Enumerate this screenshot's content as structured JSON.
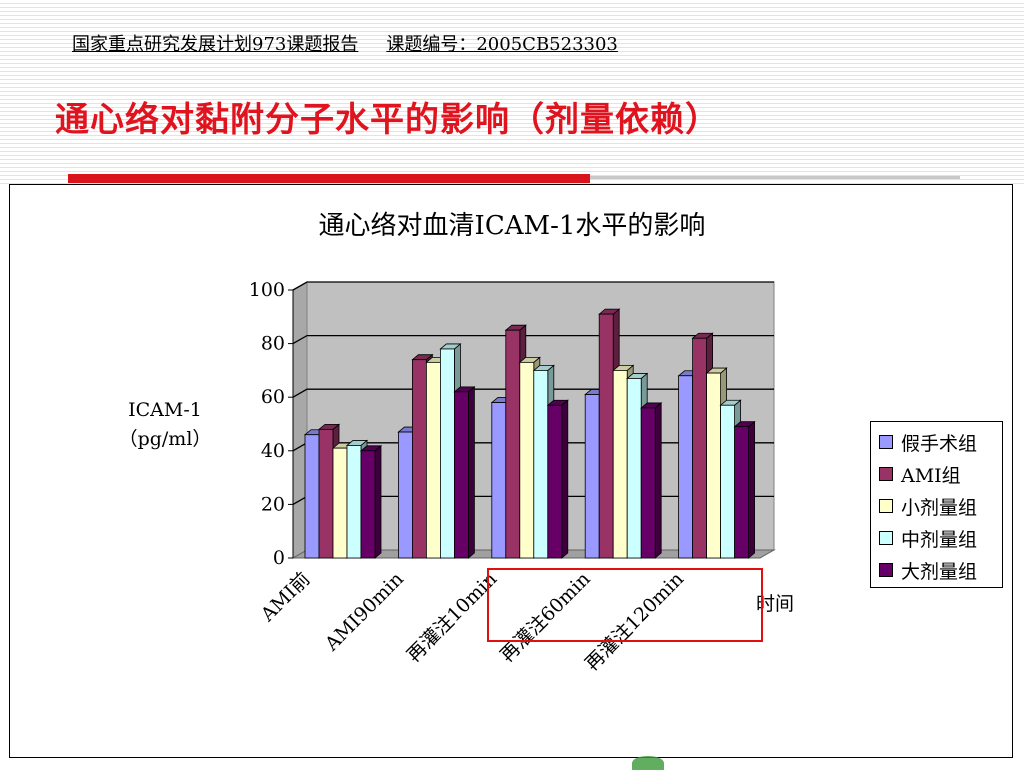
{
  "header": {
    "report_title": "国家重点研究发展计划973课题报告",
    "project_number": "课题编号：2005CB523303"
  },
  "slide_title": "通心络对黏附分子水平的影响（剂量依赖）",
  "colors": {
    "title_red": "#e0141e",
    "bar_red": "#d9141c",
    "highlight_box": "#e01010"
  },
  "chart_data": {
    "type": "bar",
    "title": "通心络对血清ICAM-1水平的影响",
    "ylabel": "ICAM-1\n（pg/ml）",
    "xlabel": "时间",
    "ylim": [
      0,
      100
    ],
    "yticks": [
      0,
      20,
      40,
      60,
      80,
      100
    ],
    "grid": true,
    "legend_position": "right",
    "style": "3d-clustered",
    "categories": [
      "AMI前",
      "AMI90min",
      "再灌注10min",
      "再灌注60min",
      "再灌注120min"
    ],
    "series": [
      {
        "name": "假手术组",
        "color": "#9999ff",
        "values": [
          46,
          47,
          58,
          61,
          68
        ]
      },
      {
        "name": "AMI组",
        "color": "#993366",
        "values": [
          48,
          74,
          85,
          91,
          82
        ]
      },
      {
        "name": "小剂量组",
        "color": "#ffffcc",
        "values": [
          41,
          73,
          73,
          70,
          69
        ]
      },
      {
        "name": "中剂量组",
        "color": "#ccffff",
        "values": [
          42,
          78,
          70,
          67,
          57
        ]
      },
      {
        "name": "大剂量组",
        "color": "#660066",
        "values": [
          40,
          62,
          57,
          56,
          49
        ]
      }
    ]
  }
}
